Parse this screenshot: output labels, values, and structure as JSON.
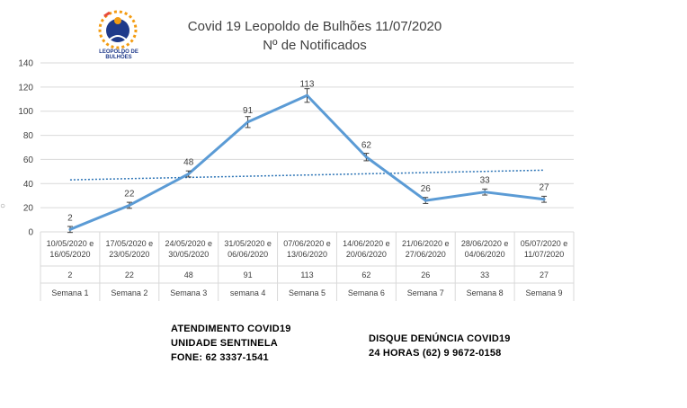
{
  "title_line1": "Covid 19 Leopoldo de Bulhões 11/07/2020",
  "title_line2": "Nº de Notificados",
  "logo_text": "LEOPOLDO DE BULHÕES",
  "footer_left": [
    "ATENDIMENTO COVID19",
    "UNIDADE SENTINELA",
    "FONE:  62 3337-1541"
  ],
  "footer_right": [
    "DISQUE DENÚNCIA COVID19",
    "24 HORAS (62) 9 9672-0158"
  ],
  "colors": {
    "line": "#5b9bd5",
    "trend": "#2e75b6",
    "grid": "#d9d9d9",
    "text": "#404040"
  },
  "chart_data": {
    "type": "line",
    "title": "Covid 19 Leopoldo de Bulhões 11/07/2020",
    "subtitle": "Nº de Notificados",
    "ylim": [
      0,
      140
    ],
    "yticks": [
      0,
      20,
      40,
      60,
      80,
      100,
      120,
      140
    ],
    "grid": true,
    "trendline": "linear",
    "error_bars": true,
    "categories": [
      {
        "dates": [
          "10/05/2020 e",
          "16/05/2020"
        ],
        "week": "Semana 1"
      },
      {
        "dates": [
          "17/05/2020 e",
          "23/05/2020"
        ],
        "week": "Semana 2"
      },
      {
        "dates": [
          "24/05/2020 e",
          "30/05/2020"
        ],
        "week": "Semana 3"
      },
      {
        "dates": [
          "31/05/2020 e",
          "06/06/2020"
        ],
        "week": "semana 4"
      },
      {
        "dates": [
          "07/06/2020 e",
          "13/06/2020"
        ],
        "week": "Semana 5"
      },
      {
        "dates": [
          "14/06/2020 e",
          "20/06/2020"
        ],
        "week": "Semana 6"
      },
      {
        "dates": [
          "21/06/2020 e",
          "27/06/2020"
        ],
        "week": "Semana 7"
      },
      {
        "dates": [
          "28/06/2020 e",
          "04/06/2020"
        ],
        "week": "Semana 8"
      },
      {
        "dates": [
          "05/07/2020 e",
          "11/07/2020"
        ],
        "week": "Semana 9"
      }
    ],
    "values": [
      2,
      22,
      48,
      91,
      113,
      62,
      26,
      33,
      27
    ]
  }
}
